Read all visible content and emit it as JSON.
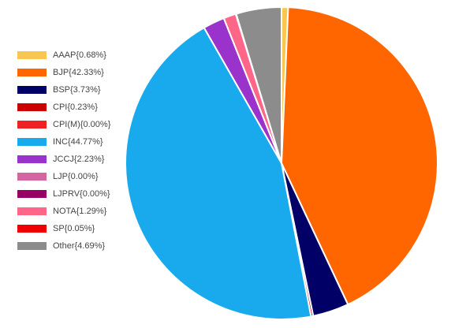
{
  "chart_data": {
    "type": "pie",
    "title": "",
    "legend_position": "left",
    "slices": [
      {
        "label": "AAAP",
        "value": 0.68,
        "legend": "AAAP{0.68%}",
        "color": "#f9c74f"
      },
      {
        "label": "BJP",
        "value": 42.33,
        "legend": "BJP{42.33%}",
        "color": "#ff6600"
      },
      {
        "label": "BSP",
        "value": 3.73,
        "legend": "BSP{3.73%}",
        "color": "#000066"
      },
      {
        "label": "CPI",
        "value": 0.23,
        "legend": "CPI{0.23%}",
        "color": "#cc0000"
      },
      {
        "label": "CPI(M)",
        "value": 0.0,
        "legend": "CPI(M){0.00%}",
        "color": "#ee2222"
      },
      {
        "label": "INC",
        "value": 44.77,
        "legend": "INC{44.77%}",
        "color": "#19aaee"
      },
      {
        "label": "JCCJ",
        "value": 2.23,
        "legend": "JCCJ{2.23%}",
        "color": "#9933cc"
      },
      {
        "label": "LJP",
        "value": 0.0,
        "legend": "LJP{0.00%}",
        "color": "#d4679f"
      },
      {
        "label": "LJPRV",
        "value": 0.0,
        "legend": "LJPRV{0.00%}",
        "color": "#990066"
      },
      {
        "label": "NOTA",
        "value": 1.29,
        "legend": "NOTA{1.29%}",
        "color": "#ff6688"
      },
      {
        "label": "SP",
        "value": 0.05,
        "legend": "SP{0.05%}",
        "color": "#ee0000"
      },
      {
        "label": "Other",
        "value": 4.69,
        "legend": "Other{4.69%}",
        "color": "#8c8c8c"
      }
    ]
  }
}
